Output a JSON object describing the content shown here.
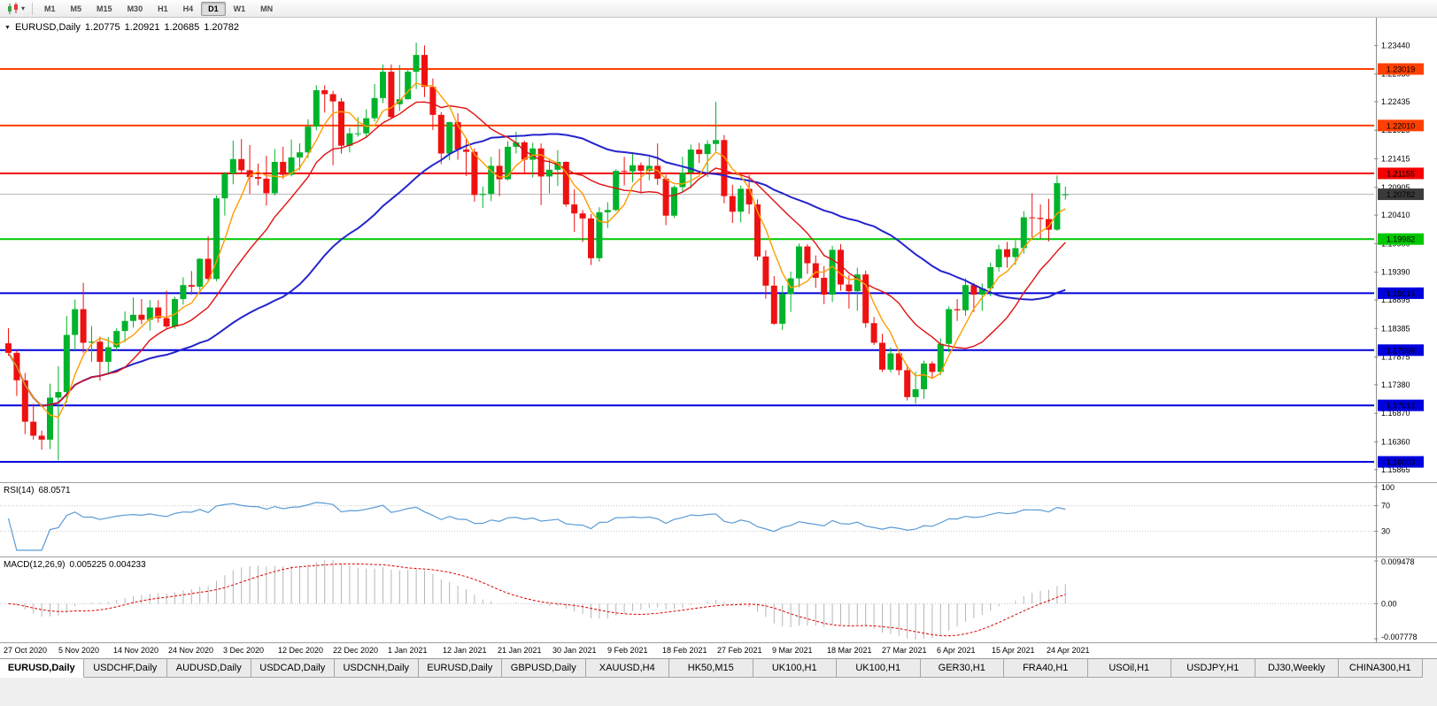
{
  "toolbar": {
    "periods": [
      "M1",
      "M5",
      "M15",
      "M30",
      "H1",
      "H4",
      "D1",
      "W1",
      "MN"
    ],
    "active_period": "D1",
    "chart_icon": "candlestick-chart-icon",
    "dropdown_glyph": "▾"
  },
  "chart": {
    "title": {
      "marker_glyph": "▼",
      "symbol": "EURUSD,Daily",
      "open": "1.20775",
      "high": "1.20921",
      "low": "1.20685",
      "close": "1.20782"
    },
    "price_axis": [
      "1.23440",
      "1.22930",
      "1.22435",
      "1.21925",
      "1.21415",
      "1.20905",
      "1.20410",
      "1.19900",
      "1.19390",
      "1.18895",
      "1.18385",
      "1.17875",
      "1.17380",
      "1.16870",
      "1.16360",
      "1.15865"
    ],
    "levels": [
      {
        "price": 1.23019,
        "label": "1.23019",
        "color": "#ff4000"
      },
      {
        "price": 1.2201,
        "label": "1.22010",
        "color": "#ff4000"
      },
      {
        "price": 1.21155,
        "label": "1.21155",
        "color": "#f40000"
      },
      {
        "price": 1.19982,
        "label": "1.19982",
        "color": "#00c800"
      },
      {
        "price": 1.19015,
        "label": "1.19015",
        "color": "#0000dc"
      },
      {
        "price": 1.17998,
        "label": "1.17998",
        "color": "#0000dc"
      },
      {
        "price": 1.17012,
        "label": "1.17012",
        "color": "#0000dc"
      },
      {
        "price": 1.16003,
        "label": "1.16003",
        "color": "#0000dc"
      }
    ],
    "current_price": {
      "value": 1.20782,
      "label": "1.20782",
      "box_color": "#3a3a3a",
      "line_color": "#b4b4b4"
    },
    "colors": {
      "bull": "#00b32c",
      "bear": "#ee1111"
    },
    "ma": {
      "fast": {
        "period": 5,
        "color": "#ff9c00"
      },
      "mid": {
        "period": 13,
        "color": "#e01010"
      },
      "slow": {
        "period": 34,
        "color": "#2424cc"
      }
    }
  },
  "chart_data": {
    "type": "candlestick",
    "symbol": "EURUSD",
    "timeframe": "Daily",
    "x_start": "27 Oct 2020",
    "x_end": "26 Apr 2021",
    "ylim": [
      1.1563,
      1.2399
    ],
    "candles": [
      [
        1.1812,
        1.1839,
        1.179,
        1.1795
      ],
      [
        1.1795,
        1.18,
        1.1718,
        1.1746
      ],
      [
        1.1746,
        1.1759,
        1.165,
        1.1672
      ],
      [
        1.1672,
        1.1704,
        1.164,
        1.1647
      ],
      [
        1.1647,
        1.1656,
        1.1622,
        1.164
      ],
      [
        1.164,
        1.174,
        1.1623,
        1.1715
      ],
      [
        1.1715,
        1.1771,
        1.1603,
        1.1725
      ],
      [
        1.1725,
        1.1861,
        1.1706,
        1.1827
      ],
      [
        1.1827,
        1.189,
        1.18,
        1.1873
      ],
      [
        1.1873,
        1.192,
        1.1795,
        1.1813
      ],
      [
        1.1813,
        1.1843,
        1.1779,
        1.1815
      ],
      [
        1.1815,
        1.1824,
        1.1745,
        1.1779
      ],
      [
        1.1779,
        1.1823,
        1.1758,
        1.1805
      ],
      [
        1.1805,
        1.1839,
        1.1799,
        1.1834
      ],
      [
        1.1834,
        1.1869,
        1.1814,
        1.1852
      ],
      [
        1.1852,
        1.1894,
        1.184,
        1.1863
      ],
      [
        1.1863,
        1.1891,
        1.1846,
        1.1854
      ],
      [
        1.1854,
        1.1889,
        1.1835,
        1.1876
      ],
      [
        1.1876,
        1.1889,
        1.1849,
        1.1857
      ],
      [
        1.1857,
        1.1906,
        1.1839,
        1.1842
      ],
      [
        1.1842,
        1.1895,
        1.1838,
        1.1891
      ],
      [
        1.1891,
        1.193,
        1.1881,
        1.1916
      ],
      [
        1.1916,
        1.1941,
        1.1899,
        1.1913
      ],
      [
        1.1913,
        1.1964,
        1.1907,
        1.1963
      ],
      [
        1.1963,
        1.2003,
        1.1923,
        1.1927
      ],
      [
        1.1927,
        1.2076,
        1.1923,
        1.2071
      ],
      [
        1.2071,
        1.2118,
        1.204,
        1.2115
      ],
      [
        1.2115,
        1.2174,
        1.2096,
        1.2141
      ],
      [
        1.2141,
        1.2177,
        1.2116,
        1.2121
      ],
      [
        1.2121,
        1.2166,
        1.2079,
        1.2109
      ],
      [
        1.2109,
        1.2133,
        1.2094,
        1.2106
      ],
      [
        1.2106,
        1.2147,
        1.2058,
        1.208
      ],
      [
        1.208,
        1.2159,
        1.2076,
        1.2136
      ],
      [
        1.2136,
        1.2163,
        1.2106,
        1.2113
      ],
      [
        1.2113,
        1.2176,
        1.211,
        1.2144
      ],
      [
        1.2144,
        1.2169,
        1.2121,
        1.2153
      ],
      [
        1.2153,
        1.2212,
        1.2143,
        1.2199
      ],
      [
        1.2199,
        1.2273,
        1.2192,
        1.2264
      ],
      [
        1.2264,
        1.2273,
        1.2224,
        1.2257
      ],
      [
        1.2257,
        1.2263,
        1.213,
        1.2244
      ],
      [
        1.2244,
        1.225,
        1.2151,
        1.2165
      ],
      [
        1.2165,
        1.2197,
        1.2153,
        1.2187
      ],
      [
        1.2187,
        1.2216,
        1.2181,
        1.2187
      ],
      [
        1.2187,
        1.223,
        1.218,
        1.2214
      ],
      [
        1.2214,
        1.2275,
        1.2208,
        1.225
      ],
      [
        1.225,
        1.231,
        1.2241,
        1.2297
      ],
      [
        1.2297,
        1.231,
        1.2214,
        1.2216
      ],
      [
        1.2239,
        1.2309,
        1.2227,
        1.2248
      ],
      [
        1.2248,
        1.2301,
        1.2247,
        1.2297
      ],
      [
        1.2297,
        1.2349,
        1.2266,
        1.2327
      ],
      [
        1.2327,
        1.2344,
        1.2252,
        1.227
      ],
      [
        1.227,
        1.2285,
        1.2193,
        1.222
      ],
      [
        1.222,
        1.2225,
        1.2132,
        1.2151
      ],
      [
        1.2151,
        1.2208,
        1.2139,
        1.2207
      ],
      [
        1.2207,
        1.2223,
        1.214,
        1.2158
      ],
      [
        1.2158,
        1.2179,
        1.2111,
        1.2154
      ],
      [
        1.2154,
        1.216,
        1.2065,
        1.2077
      ],
      [
        1.2077,
        1.2092,
        1.2054,
        1.2079
      ],
      [
        1.2079,
        1.2145,
        1.2066,
        1.2129
      ],
      [
        1.2129,
        1.2159,
        1.2075,
        1.2105
      ],
      [
        1.2105,
        1.2173,
        1.2103,
        1.2163
      ],
      [
        1.2163,
        1.219,
        1.2151,
        1.2171
      ],
      [
        1.2171,
        1.2174,
        1.2116,
        1.214
      ],
      [
        1.214,
        1.217,
        1.2108,
        1.216
      ],
      [
        1.216,
        1.2169,
        1.2059,
        1.211
      ],
      [
        1.211,
        1.2142,
        1.208,
        1.2122
      ],
      [
        1.2122,
        1.2157,
        1.2093,
        1.2136
      ],
      [
        1.2136,
        1.2137,
        1.2056,
        1.206
      ],
      [
        1.206,
        1.2087,
        1.2011,
        1.2044
      ],
      [
        1.2044,
        1.205,
        1.1993,
        1.2035
      ],
      [
        1.2035,
        1.2043,
        1.1952,
        1.1964
      ],
      [
        1.1964,
        1.2055,
        1.1958,
        1.2046
      ],
      [
        1.2046,
        1.2064,
        1.2018,
        1.205
      ],
      [
        1.205,
        1.2123,
        1.2048,
        1.212
      ],
      [
        1.212,
        1.2145,
        1.2094,
        1.2119
      ],
      [
        1.2119,
        1.2151,
        1.21,
        1.213
      ],
      [
        1.213,
        1.2135,
        1.208,
        1.212
      ],
      [
        1.212,
        1.2145,
        1.2103,
        1.2129
      ],
      [
        1.2129,
        1.2169,
        1.2095,
        1.2106
      ],
      [
        1.2106,
        1.2113,
        1.2023,
        1.204
      ],
      [
        1.204,
        1.2094,
        1.2036,
        1.2091
      ],
      [
        1.2091,
        1.2145,
        1.2082,
        1.2117
      ],
      [
        1.2117,
        1.2167,
        1.2089,
        1.2158
      ],
      [
        1.2158,
        1.217,
        1.2134,
        1.215
      ],
      [
        1.215,
        1.2175,
        1.2109,
        1.2168
      ],
      [
        1.2168,
        1.2243,
        1.2155,
        1.2175
      ],
      [
        1.2175,
        1.2184,
        1.2062,
        1.2075
      ],
      [
        1.2075,
        1.2095,
        1.2027,
        1.2047
      ],
      [
        1.2047,
        1.2094,
        1.2028,
        1.2088
      ],
      [
        1.2088,
        1.2113,
        1.2043,
        1.206
      ],
      [
        1.206,
        1.2069,
        1.196,
        1.1967
      ],
      [
        1.1967,
        1.1978,
        1.1892,
        1.1915
      ],
      [
        1.1915,
        1.1932,
        1.1845,
        1.1847
      ],
      [
        1.1847,
        1.1915,
        1.1836,
        1.19
      ],
      [
        1.19,
        1.194,
        1.1868,
        1.1928
      ],
      [
        1.1928,
        1.199,
        1.1912,
        1.1985
      ],
      [
        1.1985,
        1.1989,
        1.1936,
        1.1955
      ],
      [
        1.1955,
        1.1969,
        1.1911,
        1.1929
      ],
      [
        1.1929,
        1.195,
        1.1882,
        1.1899
      ],
      [
        1.1899,
        1.1986,
        1.1886,
        1.1979
      ],
      [
        1.1979,
        1.1989,
        1.1906,
        1.1917
      ],
      [
        1.1917,
        1.1934,
        1.1874,
        1.1905
      ],
      [
        1.1905,
        1.1947,
        1.187,
        1.1935
      ],
      [
        1.1935,
        1.1942,
        1.184,
        1.1848
      ],
      [
        1.1848,
        1.1859,
        1.1809,
        1.1813
      ],
      [
        1.1813,
        1.1829,
        1.1761,
        1.1765
      ],
      [
        1.1765,
        1.1805,
        1.176,
        1.1794
      ],
      [
        1.1794,
        1.1796,
        1.1755,
        1.1764
      ],
      [
        1.1764,
        1.1774,
        1.171,
        1.1716
      ],
      [
        1.1716,
        1.1761,
        1.1704,
        1.173
      ],
      [
        1.173,
        1.1781,
        1.1713,
        1.1776
      ],
      [
        1.1776,
        1.178,
        1.1749,
        1.1761
      ],
      [
        1.1761,
        1.1821,
        1.1755,
        1.1811
      ],
      [
        1.1811,
        1.1878,
        1.1796,
        1.1873
      ],
      [
        1.1873,
        1.1891,
        1.1852,
        1.1871
      ],
      [
        1.1871,
        1.1928,
        1.1861,
        1.1916
      ],
      [
        1.1916,
        1.192,
        1.1868,
        1.1899
      ],
      [
        1.1899,
        1.1919,
        1.187,
        1.191
      ],
      [
        1.191,
        1.1956,
        1.1896,
        1.1948
      ],
      [
        1.1948,
        1.1988,
        1.194,
        1.198
      ],
      [
        1.198,
        1.1993,
        1.1947,
        1.1966
      ],
      [
        1.1966,
        1.1996,
        1.1952,
        1.1982
      ],
      [
        1.1982,
        1.2048,
        1.1972,
        1.2037
      ],
      [
        1.2037,
        1.208,
        1.1997,
        1.2036
      ],
      [
        1.2036,
        1.206,
        1.1999,
        1.2034
      ],
      [
        1.2034,
        1.207,
        1.1994,
        1.2015
      ],
      [
        1.2015,
        1.2112,
        1.2013,
        1.2098
      ],
      [
        1.20775,
        1.20921,
        1.20685,
        1.20782
      ]
    ]
  },
  "rsi": {
    "name": "RSI(14)",
    "value": "68.0571",
    "axis_labels": [
      "100",
      "70",
      "30"
    ],
    "upper_level": 70,
    "lower_level": 30,
    "line_color": "#5b9bd5"
  },
  "macd": {
    "name": "MACD(12,26,9)",
    "values": "0.005225 0.004233",
    "axis_labels": {
      "top": "0.009478",
      "zero": "0.00",
      "bottom": "-0.007778"
    },
    "histogram_color": "#b6b6b6",
    "signal_color": "#dd0000"
  },
  "date_axis": [
    "27 Oct 2020",
    "5 Nov 2020",
    "14 Nov 2020",
    "24 Nov 2020",
    "3 Dec 2020",
    "12 Dec 2020",
    "22 Dec 2020",
    "1 Jan 2021",
    "12 Jan 2021",
    "21 Jan 2021",
    "30 Jan 2021",
    "9 Feb 2021",
    "18 Feb 2021",
    "27 Feb 2021",
    "9 Mar 2021",
    "18 Mar 2021",
    "27 Mar 2021",
    "6 Apr 2021",
    "15 Apr 2021",
    "24 Apr 2021"
  ],
  "tabs": [
    {
      "label": "EURUSD,Daily",
      "active": true
    },
    {
      "label": "USDCHF,Daily",
      "active": false
    },
    {
      "label": "AUDUSD,Daily",
      "active": false
    },
    {
      "label": "USDCAD,Daily",
      "active": false
    },
    {
      "label": "USDCNH,Daily",
      "active": false
    },
    {
      "label": "EURUSD,Daily",
      "active": false
    },
    {
      "label": "GBPUSD,Daily",
      "active": false
    },
    {
      "label": "XAUUSD,H4",
      "active": false
    },
    {
      "label": "HK50,M15",
      "active": false
    },
    {
      "label": "UK100,H1",
      "active": false
    },
    {
      "label": "UK100,H1",
      "active": false
    },
    {
      "label": "GER30,H1",
      "active": false
    },
    {
      "label": "FRA40,H1",
      "active": false
    },
    {
      "label": "USOil,H1",
      "active": false
    },
    {
      "label": "USDJPY,H1",
      "active": false
    },
    {
      "label": "DJ30,Weekly",
      "active": false
    },
    {
      "label": "CHINA300,H1",
      "active": false
    }
  ]
}
